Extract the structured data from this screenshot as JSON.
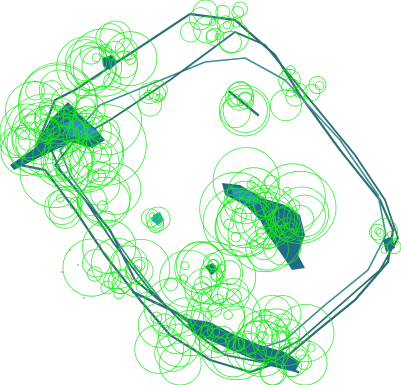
{
  "canvas": {
    "background": "#ffffff"
  },
  "colors": {
    "circles": "#19e619",
    "track_dark": "#2b6f6f",
    "track_light": "#3f8f95",
    "blob_fill": "#1f6b8a",
    "blob_highlight": "#2aa0c8",
    "scatter_dots": "#9a9a9a"
  }
}
